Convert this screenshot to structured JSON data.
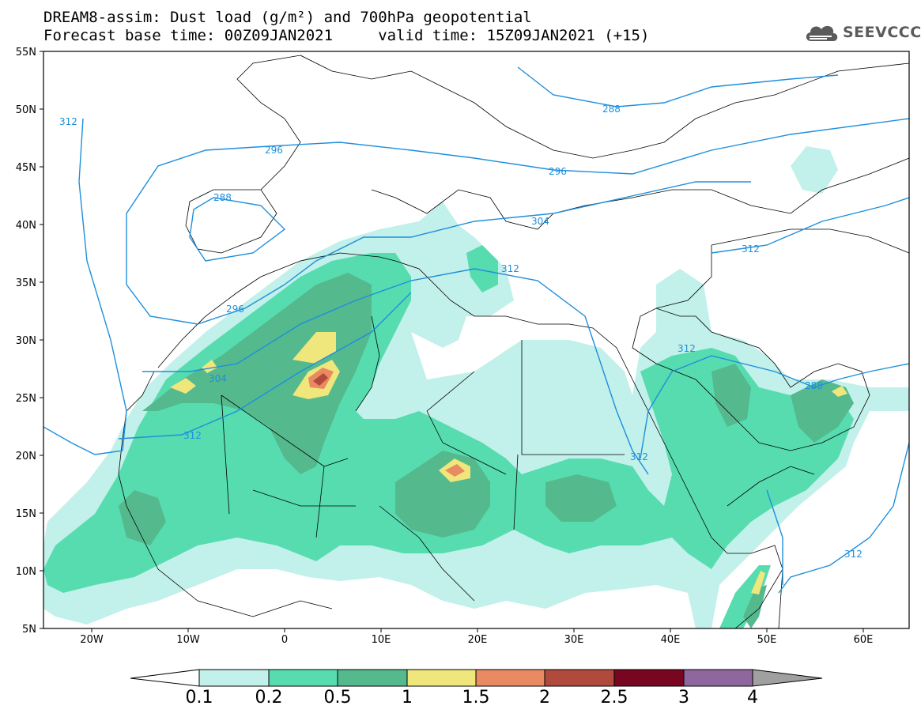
{
  "title_line1": "DREAM8-assim: Dust load (g/m²) and 700hPa geopotential",
  "title_line2": "Forecast base time: 00Z09JAN2021     valid time: 15Z09JAN2021 (+15)",
  "logo": {
    "text": "SEEVCCC",
    "icon": "cloud-icon"
  },
  "map": {
    "lat_labels": [
      "55N",
      "50N",
      "45N",
      "40N",
      "35N",
      "30N",
      "25N",
      "20N",
      "15N",
      "10N",
      "5N"
    ],
    "lon_labels": [
      "20W",
      "10W",
      "0",
      "10E",
      "20E",
      "30E",
      "40E",
      "50E",
      "60E"
    ],
    "contour_labels": [
      "312",
      "296",
      "288",
      "288",
      "296",
      "304",
      "312",
      "296",
      "304",
      "312",
      "312",
      "288",
      "312",
      "312",
      "312",
      "312"
    ],
    "contour_color": "#1e8fdc",
    "land_background": "#ffffff",
    "border_color": "#000000",
    "dust_regions": "Saharan dust plume across Morocco, Algeria, Mali, Niger, Chad, Sudan and Arabian Peninsula; maximum over central Algeria (~2 g/m²)"
  },
  "colorbar": {
    "labels": [
      "0.1",
      "0.2",
      "0.5",
      "1",
      "1.5",
      "2",
      "2.5",
      "3",
      "4"
    ],
    "colors": [
      "#c2f0ea",
      "#57dcb0",
      "#55b98e",
      "#efe67c",
      "#e98a62",
      "#b04a3c",
      "#780620",
      "#8e679e",
      "#a0a0a0"
    ]
  }
}
